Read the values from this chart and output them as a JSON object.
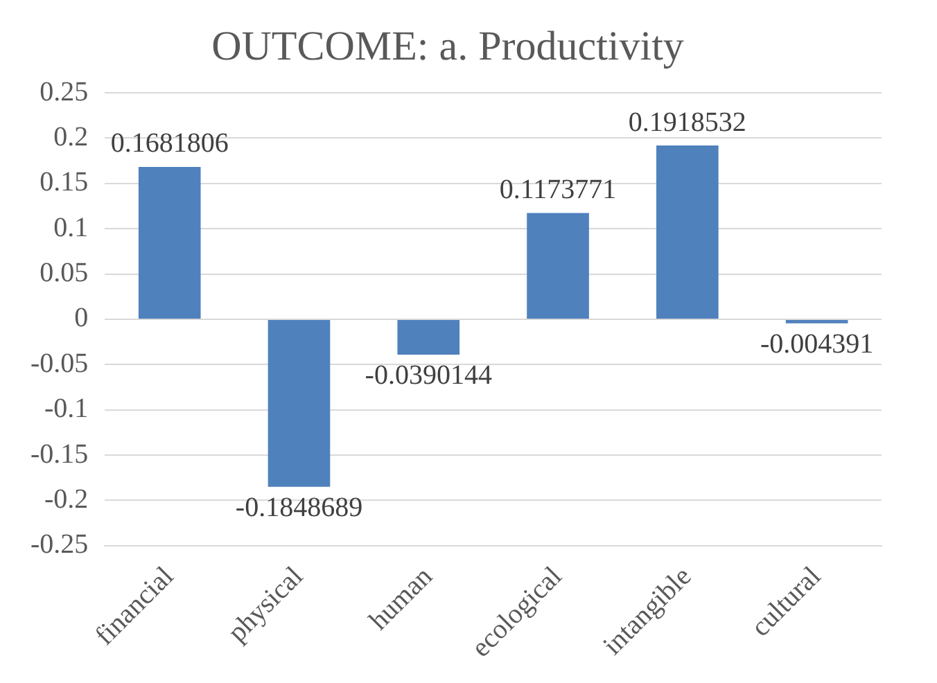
{
  "chart_data": {
    "type": "bar",
    "title": "OUTCOME: a. Productivity",
    "categories": [
      "financial",
      "physical",
      "human",
      "ecological",
      "intangible",
      "cultural"
    ],
    "values": [
      0.1681806,
      -0.1848689,
      -0.0390144,
      0.1173771,
      0.1918532,
      -0.004391
    ],
    "color": "#4f81bd",
    "ylim": [
      -0.25,
      0.25
    ],
    "yticks": [
      -0.25,
      -0.2,
      -0.15,
      -0.1,
      -0.05,
      0,
      0.05,
      0.1,
      0.15,
      0.2,
      0.25
    ],
    "grid": "y",
    "legend": false,
    "data_labels": true
  }
}
